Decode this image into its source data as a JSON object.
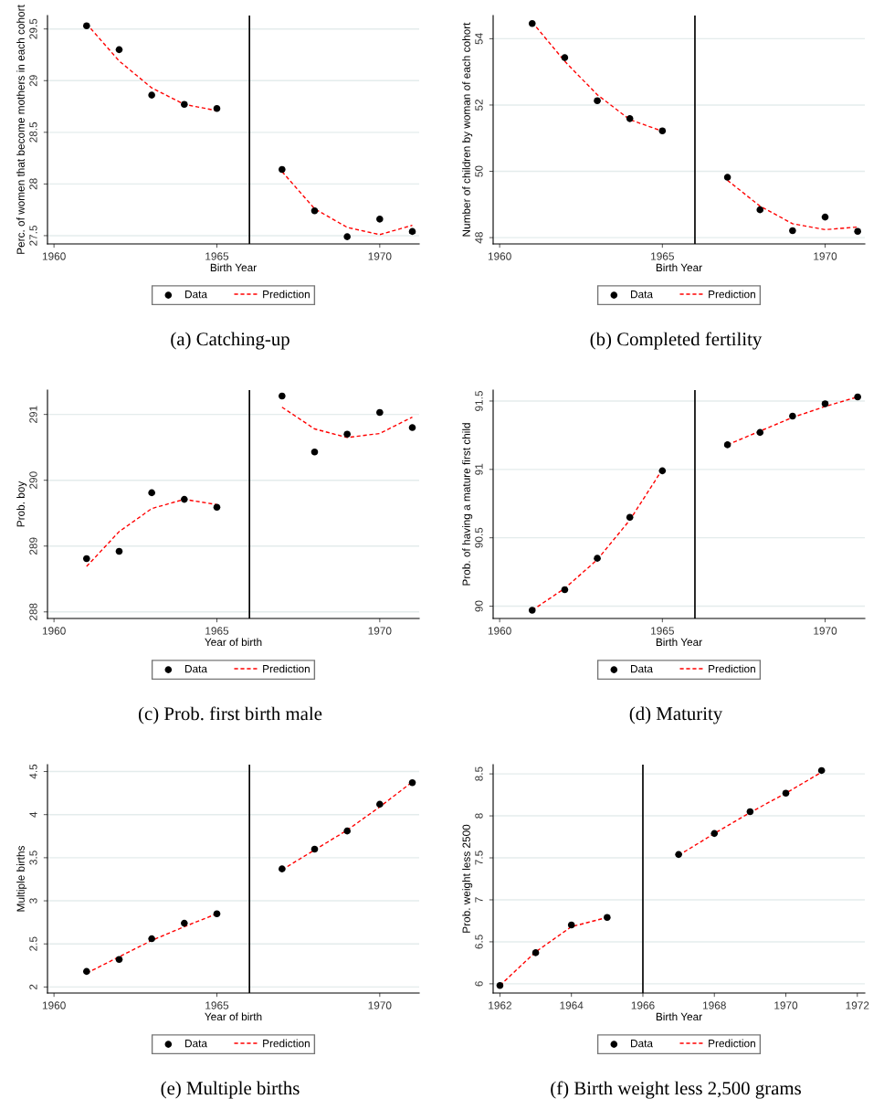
{
  "chart_data": [
    {
      "type": "scatter",
      "title": "(a) Catching-up",
      "xlabel": "Birth Year",
      "ylabel": "Perc. of women that become mothers in each cohort",
      "xlim": [
        1959.8,
        1971.21
      ],
      "xticks": [
        1960,
        1965,
        1970
      ],
      "ylim": [
        27.42,
        29.63
      ],
      "yticks": [
        27.5,
        28,
        28.5,
        29,
        29.5
      ],
      "grid": "y",
      "legend": "bottom",
      "ref_lines": [
        {
          "axis": "x",
          "value": 1966,
          "color": "#000000"
        }
      ],
      "series": [
        {
          "name": "Data",
          "color": "#000000",
          "marker": "circle",
          "x": [
            1961,
            1962,
            1963,
            1964,
            1965,
            1967,
            1968,
            1969,
            1970,
            1971
          ],
          "values": [
            29.53,
            29.3,
            28.86,
            28.77,
            28.73,
            28.14,
            27.74,
            27.49,
            27.66,
            27.54
          ]
        },
        {
          "name": "Prediction",
          "type": "line",
          "color": "#ff0000",
          "line_style": "dashed",
          "x": [
            1961,
            1962,
            1963,
            1964,
            1965,
            1966,
            1967,
            1968,
            1969,
            1970,
            1971
          ],
          "values": [
            29.55,
            29.19,
            28.93,
            28.77,
            28.71,
            null,
            28.12,
            27.76,
            27.58,
            27.51,
            27.6
          ]
        }
      ]
    },
    {
      "type": "scatter",
      "title": "(b) Completed fertility",
      "xlabel": "Birth Year",
      "ylabel": "Number of children by woman of each cohort",
      "xlim": [
        1959.8,
        1971.22
      ],
      "xticks": [
        1960,
        1965,
        1970
      ],
      "ylim": [
        47.81,
        54.7
      ],
      "yticks": [
        48,
        50,
        52,
        54
      ],
      "grid": "y",
      "legend": "bottom",
      "ref_lines": [
        {
          "axis": "x",
          "value": 1966,
          "color": "#000000"
        }
      ],
      "series": [
        {
          "name": "Data",
          "color": "#000000",
          "marker": "circle",
          "x": [
            1961,
            1962,
            1963,
            1964,
            1965,
            1967,
            1968,
            1969,
            1970,
            1971
          ],
          "values": [
            54.46,
            53.43,
            52.13,
            51.59,
            51.22,
            49.82,
            48.84,
            48.21,
            48.62,
            48.19
          ]
        },
        {
          "name": "Prediction",
          "type": "line",
          "color": "#ff0000",
          "line_style": "dashed",
          "x": [
            1961,
            1962,
            1963,
            1964,
            1965,
            1966,
            1967,
            1968,
            1969,
            1970,
            1971
          ],
          "values": [
            54.5,
            53.32,
            52.31,
            51.56,
            51.21,
            null,
            49.73,
            48.95,
            48.42,
            48.24,
            48.32
          ]
        }
      ]
    },
    {
      "type": "scatter",
      "title": "(c) Prob. first birth male",
      "xlabel": "Year of birth",
      "ylabel": "Prob. boy",
      "xlim": [
        1959.8,
        1971.21
      ],
      "xticks": [
        1960,
        1965,
        1970
      ],
      "ylim": [
        287.9,
        291.37
      ],
      "yticks": [
        288,
        289,
        290,
        291
      ],
      "grid": "y",
      "legend": "bottom",
      "ref_lines": [
        {
          "axis": "x",
          "value": 1966,
          "color": "#000000"
        }
      ],
      "series": [
        {
          "name": "Data",
          "color": "#000000",
          "marker": "circle",
          "x": [
            1961,
            1962,
            1963,
            1964,
            1965,
            1967,
            1968,
            1969,
            1970,
            1971
          ],
          "values": [
            288.81,
            288.92,
            289.81,
            289.71,
            289.59,
            291.28,
            290.43,
            290.7,
            291.03,
            290.8
          ]
        },
        {
          "name": "Prediction",
          "type": "line",
          "color": "#ff0000",
          "line_style": "dashed",
          "x": [
            1961,
            1962,
            1963,
            1964,
            1965,
            1966,
            1967,
            1968,
            1969,
            1970,
            1971
          ],
          "values": [
            288.69,
            289.22,
            289.57,
            289.71,
            289.63,
            null,
            291.11,
            290.78,
            290.65,
            290.71,
            290.96
          ]
        }
      ]
    },
    {
      "type": "scatter",
      "title": "(d) Maturity",
      "xlabel": "Birth Year",
      "ylabel": "Prob. of having a mature first child",
      "xlim": [
        1959.8,
        1971.22
      ],
      "xticks": [
        1960,
        1965,
        1970
      ],
      "ylim": [
        89.91,
        91.58
      ],
      "yticks": [
        90,
        90.5,
        91,
        91.5
      ],
      "grid": "y",
      "legend": "bottom",
      "ref_lines": [
        {
          "axis": "x",
          "value": 1966,
          "color": "#000000"
        }
      ],
      "series": [
        {
          "name": "Data",
          "color": "#000000",
          "marker": "circle",
          "x": [
            1961,
            1962,
            1963,
            1964,
            1965,
            1967,
            1968,
            1969,
            1970,
            1971
          ],
          "values": [
            89.97,
            90.12,
            90.35,
            90.65,
            90.99,
            91.18,
            91.27,
            91.39,
            91.48,
            91.53
          ]
        },
        {
          "name": "Prediction",
          "type": "line",
          "color": "#ff0000",
          "line_style": "dashed",
          "x": [
            1961,
            1962,
            1963,
            1964,
            1965,
            1966,
            1967,
            1968,
            1969,
            1970,
            1971
          ],
          "values": [
            89.97,
            90.13,
            90.34,
            90.63,
            91.0,
            null,
            91.18,
            91.28,
            91.38,
            91.46,
            91.53
          ]
        }
      ]
    },
    {
      "type": "scatter",
      "title": "(e) Multiple births",
      "xlabel": "Year of birth",
      "ylabel": "Multiple births",
      "xlim": [
        1959.8,
        1971.21
      ],
      "xticks": [
        1960,
        1965,
        1970
      ],
      "ylim": [
        1.93,
        4.58
      ],
      "yticks": [
        2,
        2.5,
        3,
        3.5,
        4,
        4.5
      ],
      "grid": "y",
      "legend": "bottom",
      "ref_lines": [
        {
          "axis": "x",
          "value": 1966,
          "color": "#000000"
        }
      ],
      "series": [
        {
          "name": "Data",
          "color": "#000000",
          "marker": "circle",
          "x": [
            1961,
            1962,
            1963,
            1964,
            1965,
            1967,
            1968,
            1969,
            1970,
            1971
          ],
          "values": [
            2.18,
            2.32,
            2.56,
            2.74,
            2.85,
            3.37,
            3.6,
            3.81,
            4.12,
            4.37
          ]
        },
        {
          "name": "Prediction",
          "type": "line",
          "color": "#ff0000",
          "line_style": "dashed",
          "x": [
            1961,
            1962,
            1963,
            1964,
            1965,
            1966,
            1967,
            1968,
            1969,
            1970,
            1971
          ],
          "values": [
            2.16,
            2.35,
            2.54,
            2.7,
            2.85,
            null,
            3.36,
            3.59,
            3.82,
            4.09,
            4.38
          ]
        }
      ]
    },
    {
      "type": "scatter",
      "title": "(f) Birth weight less 2,500 grams",
      "xlabel": "Birth Year",
      "ylabel": "Prob. weight less 2500",
      "xlim": [
        1961.81,
        1972.21
      ],
      "xticks": [
        1962,
        1964,
        1966,
        1968,
        1970,
        1972
      ],
      "ylim": [
        5.89,
        8.61
      ],
      "yticks": [
        6,
        6.5,
        7,
        7.5,
        8,
        8.5
      ],
      "grid": "y",
      "legend": "bottom",
      "ref_lines": [
        {
          "axis": "x",
          "value": 1966,
          "color": "#000000"
        }
      ],
      "series": [
        {
          "name": "Data",
          "color": "#000000",
          "marker": "circle",
          "x": [
            1962,
            1963,
            1964,
            1965,
            1967,
            1968,
            1969,
            1970,
            1971
          ],
          "values": [
            5.98,
            6.37,
            6.7,
            6.79,
            7.54,
            7.79,
            8.05,
            8.27,
            8.54
          ]
        },
        {
          "name": "Prediction",
          "type": "line",
          "color": "#ff0000",
          "line_style": "dashed",
          "x": [
            1962,
            1963,
            1964,
            1965,
            1966,
            1967,
            1968,
            1969,
            1970,
            1971
          ],
          "values": [
            5.98,
            6.38,
            6.68,
            6.79,
            null,
            7.53,
            7.79,
            8.04,
            8.27,
            8.52
          ]
        }
      ]
    }
  ]
}
